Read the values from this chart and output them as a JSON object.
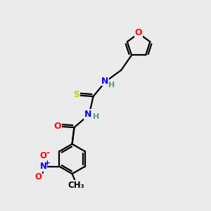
{
  "bg_color": "#ebebeb",
  "atom_colors": {
    "C": "#000000",
    "H": "#4a9a9a",
    "N": "#0000ff",
    "O": "#ff0000",
    "S": "#cccc00"
  },
  "bond_color": "#000000",
  "bond_width": 1.6
}
